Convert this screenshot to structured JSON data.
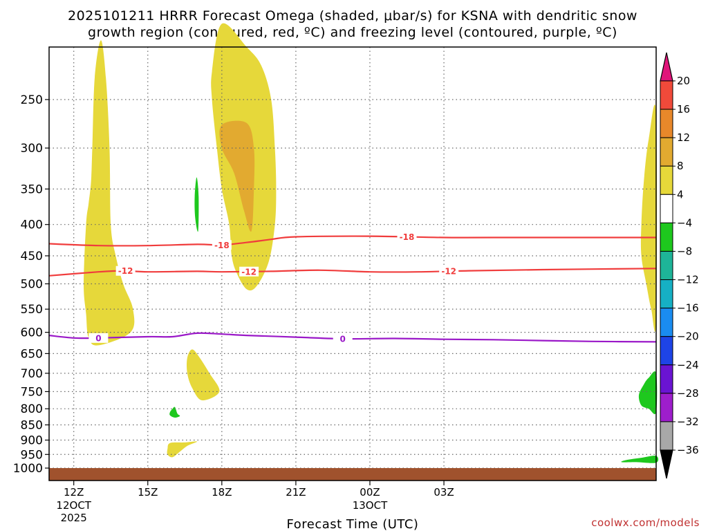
{
  "chart_data": {
    "type": "contour",
    "title_line1": "2025101211 HRRR Forecast Omega (shaded, μbar/s) for KSNA with dendritic snow",
    "title_line2": "growth region (contoured, red, ºC) and freezing level (contoured, purple, ºC)",
    "xlabel": "Forecast Time (UTC)",
    "ylabel": "",
    "credit": "coolwx.com/models",
    "x_range_hours": [
      11,
      35.6
    ],
    "y_levels_hpa": [
      250,
      300,
      350,
      400,
      450,
      500,
      550,
      600,
      650,
      700,
      750,
      800,
      850,
      900,
      950,
      1000
    ],
    "x_ticks": [
      {
        "hour": 12,
        "label": "12Z",
        "sub1": "12OCT",
        "sub2": "2025"
      },
      {
        "hour": 15,
        "label": "15Z",
        "sub1": "",
        "sub2": ""
      },
      {
        "hour": 18,
        "label": "18Z",
        "sub1": "",
        "sub2": ""
      },
      {
        "hour": 21,
        "label": "21Z",
        "sub1": "",
        "sub2": ""
      },
      {
        "hour": 24,
        "label": "00Z",
        "sub1": "13OCT",
        "sub2": ""
      },
      {
        "hour": 27,
        "label": "03Z",
        "sub1": "",
        "sub2": ""
      }
    ],
    "colorbar": {
      "levels": [
        20,
        16,
        12,
        8,
        4,
        -4,
        -8,
        -12,
        -16,
        -20,
        -24,
        -28,
        -32,
        -36
      ],
      "colors": [
        "#e0157a",
        "#f04a3a",
        "#e8882a",
        "#e2aa30",
        "#e6d83a",
        "#ffffff",
        "#1ec81e",
        "#1eb498",
        "#16b0c4",
        "#1a8cf0",
        "#1e44e6",
        "#6a14d2",
        "#9e1ecc",
        "#a8a8a8",
        "#000000"
      ],
      "tick_labels": [
        "20",
        "16",
        "12",
        "8",
        "4",
        "−4",
        "−8",
        "−12",
        "−16",
        "−20",
        "−24",
        "−28",
        "−32",
        "−36"
      ]
    },
    "temperature_contours": [
      {
        "value": -18,
        "label": "-18",
        "color": "#f03c3c",
        "points": [
          [
            11,
            430
          ],
          [
            13,
            433
          ],
          [
            15,
            433
          ],
          [
            17,
            431
          ],
          [
            18,
            432
          ],
          [
            19,
            428
          ],
          [
            20,
            423
          ],
          [
            21,
            419
          ],
          [
            24,
            418
          ],
          [
            27,
            420
          ],
          [
            29,
            420
          ],
          [
            35.6,
            420
          ]
        ],
        "label_hours": [
          18,
          25.5
        ]
      },
      {
        "value": -12,
        "label": "-12",
        "color": "#f03c3c",
        "points": [
          [
            11,
            485
          ],
          [
            13,
            478
          ],
          [
            14,
            476
          ],
          [
            15,
            478
          ],
          [
            17,
            477
          ],
          [
            18,
            478
          ],
          [
            20,
            477
          ],
          [
            22,
            475
          ],
          [
            24,
            478
          ],
          [
            26,
            478
          ],
          [
            28,
            476
          ],
          [
            31,
            474
          ],
          [
            35.6,
            472
          ]
        ],
        "label_hours": [
          14.1,
          19.1,
          27.2
        ]
      },
      {
        "value": 0,
        "label": "0",
        "color": "#9a18c8",
        "points": [
          [
            11,
            607
          ],
          [
            12,
            613
          ],
          [
            13,
            613
          ],
          [
            15,
            610
          ],
          [
            16,
            610
          ],
          [
            17,
            602
          ],
          [
            18,
            604
          ],
          [
            19,
            607
          ],
          [
            21,
            611
          ],
          [
            23,
            615
          ],
          [
            25,
            614
          ],
          [
            27,
            616
          ],
          [
            29,
            617
          ],
          [
            31,
            619
          ],
          [
            33,
            621
          ],
          [
            35.6,
            622
          ]
        ],
        "label_hours": [
          13,
          22.9
        ]
      }
    ],
    "omega_regions": [
      {
        "id": "yellow-narrow-column",
        "level": 4,
        "color": "#e6d83a",
        "points": [
          [
            13.1,
            200
          ],
          [
            13.3,
            230
          ],
          [
            13.45,
            300
          ],
          [
            13.5,
            400
          ],
          [
            13.7,
            450
          ],
          [
            14.0,
            500
          ],
          [
            14.4,
            550
          ],
          [
            14.3,
            600
          ],
          [
            13.0,
            630
          ],
          [
            12.6,
            612
          ],
          [
            12.5,
            560
          ],
          [
            12.4,
            500
          ],
          [
            12.5,
            400
          ],
          [
            12.6,
            370
          ],
          [
            12.7,
            340
          ],
          [
            12.75,
            300
          ],
          [
            12.85,
            230
          ]
        ]
      },
      {
        "id": "yellow-upper-plume",
        "level": 4,
        "color": "#e6d83a",
        "points": [
          [
            18.0,
            188
          ],
          [
            19.0,
            205
          ],
          [
            19.6,
            220
          ],
          [
            20.0,
            250
          ],
          [
            20.15,
            300
          ],
          [
            20.2,
            350
          ],
          [
            20.15,
            400
          ],
          [
            19.9,
            460
          ],
          [
            19.4,
            505
          ],
          [
            19.0,
            510
          ],
          [
            18.6,
            480
          ],
          [
            18.4,
            450
          ],
          [
            18.3,
            400
          ],
          [
            18.0,
            350
          ],
          [
            17.8,
            300
          ],
          [
            17.6,
            250
          ],
          [
            17.6,
            225
          ]
        ]
      },
      {
        "id": "orange-core",
        "level": 8,
        "color": "#e2aa30",
        "points": [
          [
            18.0,
            275
          ],
          [
            19.0,
            273
          ],
          [
            19.3,
            300
          ],
          [
            19.3,
            350
          ],
          [
            19.2,
            410
          ],
          [
            18.9,
            380
          ],
          [
            18.5,
            330
          ],
          [
            18.0,
            300
          ]
        ]
      },
      {
        "id": "green-upper-sliver",
        "level": -4,
        "color": "#1ec81e",
        "points": [
          [
            16.98,
            335
          ],
          [
            17.06,
            360
          ],
          [
            17.04,
            410
          ],
          [
            16.92,
            390
          ],
          [
            16.9,
            360
          ]
        ]
      },
      {
        "id": "yellow-mid-blob",
        "level": 4,
        "color": "#e6d83a",
        "points": [
          [
            16.8,
            640
          ],
          [
            17.1,
            660
          ],
          [
            17.5,
            700
          ],
          [
            17.9,
            750
          ],
          [
            17.2,
            775
          ],
          [
            16.8,
            740
          ],
          [
            16.6,
            700
          ],
          [
            16.6,
            660
          ]
        ]
      },
      {
        "id": "green-small-dot",
        "level": -4,
        "color": "#1ec81e",
        "points": [
          [
            16.1,
            795
          ],
          [
            16.2,
            815
          ],
          [
            16.3,
            822
          ],
          [
            16.1,
            827
          ],
          [
            15.9,
            820
          ],
          [
            15.9,
            810
          ],
          [
            16.0,
            800
          ]
        ]
      },
      {
        "id": "yellow-low-wisp",
        "level": 4,
        "color": "#e6d83a",
        "points": [
          [
            15.9,
            910
          ],
          [
            16.5,
            908
          ],
          [
            17.0,
            905
          ],
          [
            16.6,
            920
          ],
          [
            16.3,
            940
          ],
          [
            16.0,
            960
          ],
          [
            15.8,
            950
          ],
          [
            15.8,
            930
          ]
        ]
      },
      {
        "id": "yellow-right-edge",
        "level": 4,
        "color": "#e6d83a",
        "points": [
          [
            35.6,
            265
          ],
          [
            35.6,
            570
          ],
          [
            35.4,
            550
          ],
          [
            35.2,
            500
          ],
          [
            35.0,
            450
          ],
          [
            35.0,
            400
          ],
          [
            35.1,
            340
          ],
          [
            35.3,
            290
          ]
        ]
      },
      {
        "id": "green-right-lobe",
        "level": -4,
        "color": "#1ec81e",
        "points": [
          [
            35.6,
            700
          ],
          [
            35.6,
            810
          ],
          [
            35.3,
            800
          ],
          [
            35.0,
            790
          ],
          [
            34.9,
            760
          ],
          [
            35.1,
            730
          ],
          [
            35.3,
            712
          ]
        ]
      },
      {
        "id": "green-bottom-sliver",
        "level": -4,
        "color": "#1ec81e",
        "points": [
          [
            34.4,
            970
          ],
          [
            35.0,
            962
          ],
          [
            35.6,
            955
          ],
          [
            35.6,
            980
          ],
          [
            34.8,
            978
          ],
          [
            34.2,
            978
          ]
        ]
      }
    ],
    "terrain": {
      "color": "#a0522d",
      "top_hpa": 1010
    }
  }
}
